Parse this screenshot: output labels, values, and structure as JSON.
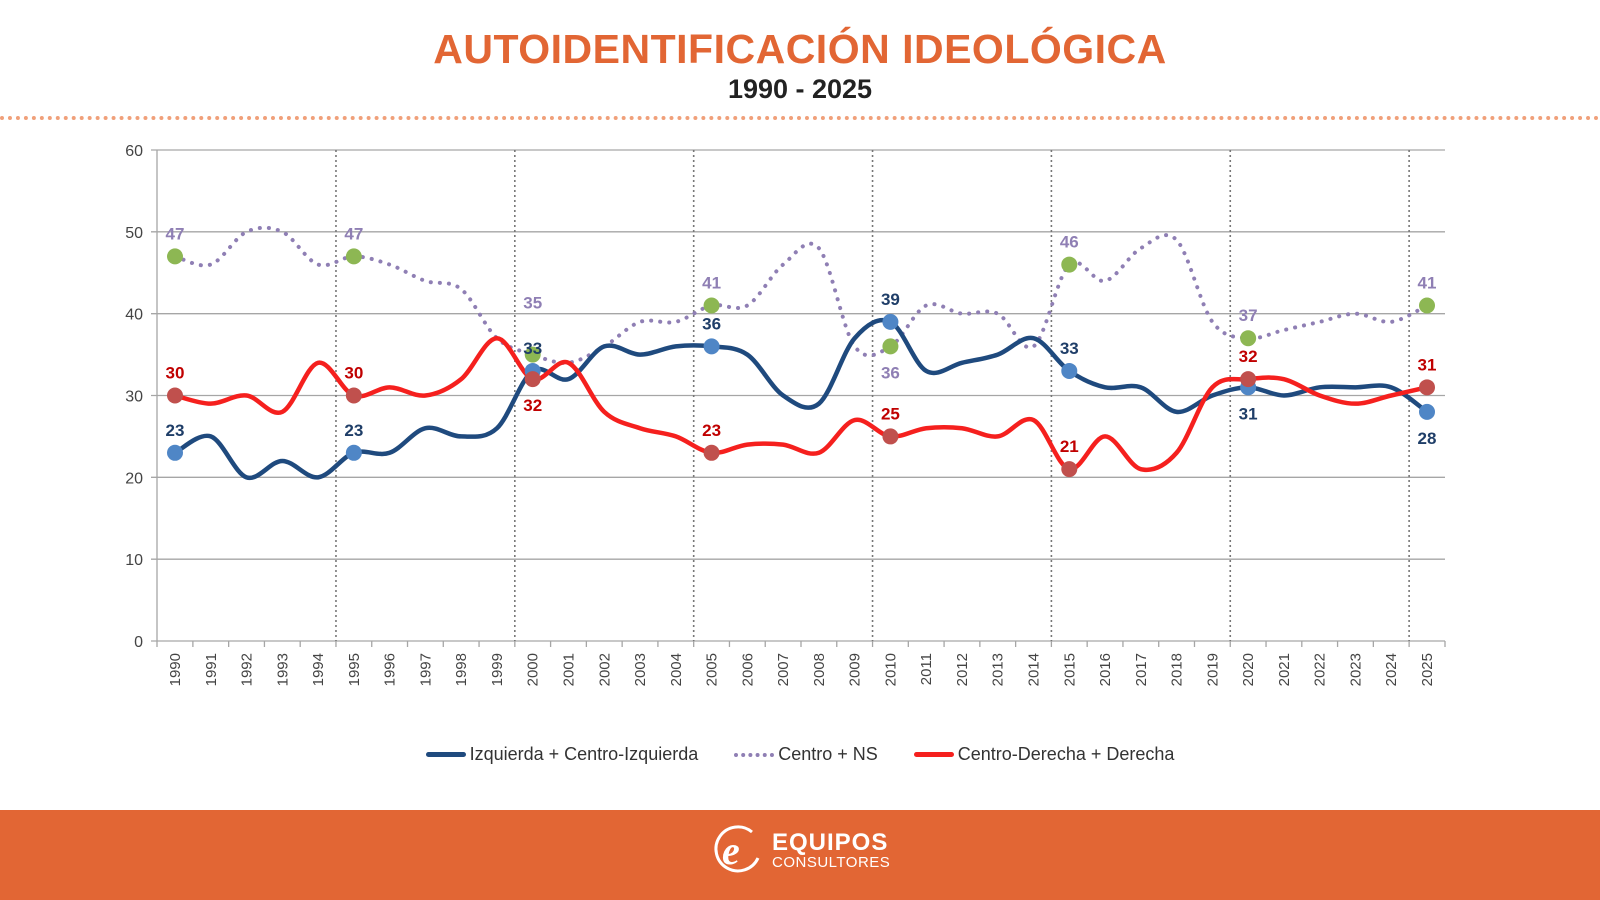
{
  "header": {
    "title": "AUTOIDENTIFICACIÓN IDEOLÓGICA",
    "subtitle": "1990 - 2025"
  },
  "footer": {
    "logo_main": "EQUIPOS",
    "logo_sub": "CONSULTORES",
    "logo_icon": "e-logo-icon"
  },
  "colors": {
    "accent": "#e26634",
    "izquierda_line": "#1f4a7e",
    "izquierda_marker": "#4f86c6",
    "centro_line": "#8f7fb4",
    "centro_marker": "#8db753",
    "derecha_line": "#f5201e",
    "derecha_marker": "#c0504d",
    "izquierda_label": "#1f3e68",
    "centro_label": "#8f7fb4",
    "derecha_label": "#c00000"
  },
  "chart_data": {
    "type": "line",
    "title": "AUTOIDENTIFICACIÓN IDEOLÓGICA",
    "subtitle": "1990 - 2025",
    "xlabel": "",
    "ylabel": "",
    "ylim": [
      0,
      60
    ],
    "yticks": [
      0,
      10,
      20,
      30,
      40,
      50,
      60
    ],
    "grid": true,
    "legend_position": "bottom",
    "x": [
      "1990",
      "1991",
      "1992",
      "1993",
      "1994",
      "1995",
      "1996",
      "1997",
      "1998",
      "1999",
      "2000",
      "2001",
      "2002",
      "2003",
      "2004",
      "2005",
      "2006",
      "2007",
      "2008",
      "2009",
      "2010",
      "2011",
      "2012",
      "2013",
      "2014",
      "2015",
      "2016",
      "2017",
      "2018",
      "2019",
      "2020",
      "2021",
      "2022",
      "2023",
      "2024",
      "2025"
    ],
    "highlight_years": [
      "1990",
      "1995",
      "2000",
      "2005",
      "2010",
      "2015",
      "2020",
      "2025"
    ],
    "series": [
      {
        "name": "Izquierda + Centro-Izquierda",
        "style": "solid",
        "values": [
          23,
          25,
          20,
          22,
          20,
          23,
          23,
          26,
          25,
          26,
          33,
          32,
          36,
          35,
          36,
          36,
          35,
          30,
          29,
          37,
          39,
          33,
          34,
          35,
          37,
          33,
          31,
          31,
          28,
          30,
          31,
          30,
          31,
          31,
          31,
          28
        ],
        "labels": {
          "1990": "23",
          "1995": "23",
          "2000": "33",
          "2005": "36",
          "2010": "39",
          "2015": "33",
          "2020": "31",
          "2025": "28"
        },
        "label_pos": {
          "1990": "above",
          "1995": "above",
          "2000": "above",
          "2005": "above",
          "2010": "above",
          "2015": "above",
          "2020": "below",
          "2025": "below"
        }
      },
      {
        "name": "Centro + NS",
        "style": "dotted",
        "values": [
          47,
          46,
          50,
          50,
          46,
          47,
          46,
          44,
          43,
          37,
          35,
          34,
          36,
          39,
          39,
          41,
          41,
          46,
          48,
          36,
          36,
          41,
          40,
          40,
          36,
          46,
          44,
          48,
          49,
          39,
          37,
          38,
          39,
          40,
          39,
          41
        ],
        "labels": {
          "1990": "47",
          "1995": "47",
          "2000": "35",
          "2005": "41",
          "2010": "36",
          "2015": "46",
          "2020": "37",
          "2025": "41"
        },
        "label_pos": {
          "1990": "above",
          "1995": "above",
          "2000": "above2",
          "2005": "above",
          "2010": "below",
          "2015": "above",
          "2020": "above",
          "2025": "above"
        }
      },
      {
        "name": "Centro-Derecha + Derecha",
        "style": "solid",
        "values": [
          30,
          29,
          30,
          28,
          34,
          30,
          31,
          30,
          32,
          37,
          32,
          34,
          28,
          26,
          25,
          23,
          24,
          24,
          23,
          27,
          25,
          26,
          26,
          25,
          27,
          21,
          25,
          21,
          23,
          31,
          32,
          32,
          30,
          29,
          30,
          31
        ],
        "labels": {
          "1990": "30",
          "1995": "30",
          "2000": "32",
          "2005": "23",
          "2010": "25",
          "2015": "21",
          "2020": "32",
          "2025": "31"
        },
        "label_pos": {
          "1990": "above",
          "1995": "above",
          "2000": "below",
          "2005": "above",
          "2010": "above",
          "2015": "above",
          "2020": "above",
          "2025": "above"
        }
      }
    ]
  }
}
